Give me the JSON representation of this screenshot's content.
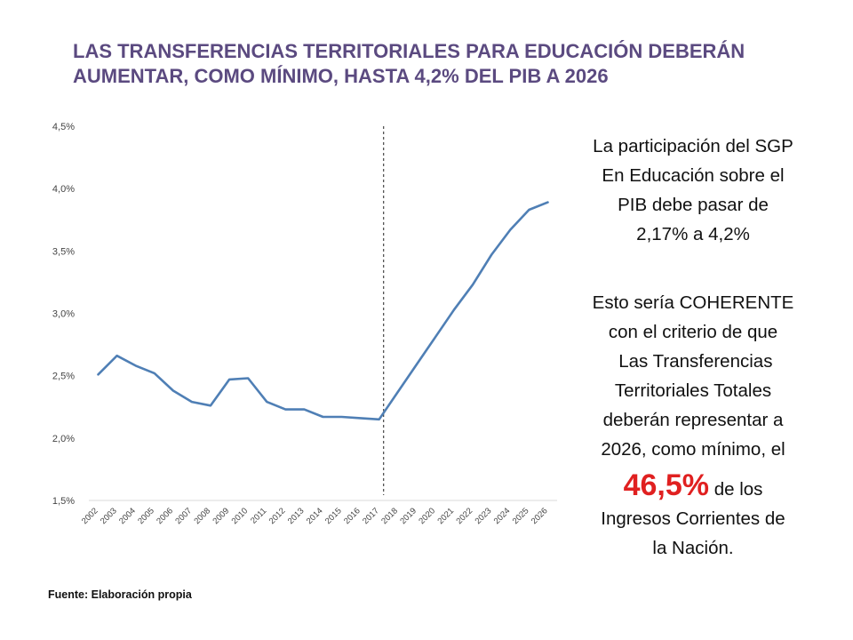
{
  "title": {
    "line1": "LAS TRANSFERENCIAS TERRITORIALES PARA EDUCACIÓN DEBERÁN",
    "line2": "AUMENTAR, COMO MÍNIMO, HASTA 4,2% DEL PIB A 2026"
  },
  "side_text": {
    "lines1": [
      "La participación del SGP",
      "En Educación sobre el",
      "PIB debe pasar de",
      "2,17% a 4,2%"
    ],
    "lines2a": [
      "Esto sería COHERENTE",
      "con el criterio de que",
      " Las Transferencias",
      "Territoriales Totales",
      "deberán representar a",
      "2026, como mínimo, el"
    ],
    "highlight": "46,5%",
    "after_highlight": " de los",
    "lines2b": [
      "Ingresos Corrientes de",
      "la Nación."
    ]
  },
  "source": "Fuente: Elaboración propia",
  "chart_data": {
    "type": "line",
    "title": "",
    "xlabel": "",
    "ylabel": "",
    "x": [
      "2002",
      "2003",
      "2004",
      "2005",
      "2006",
      "2007",
      "2008",
      "2009",
      "2010",
      "2011",
      "2012",
      "2013",
      "2014",
      "2015",
      "2016",
      "2017",
      "2018",
      "2019",
      "2020",
      "2021",
      "2022",
      "2023",
      "2024",
      "2025",
      "2026"
    ],
    "series": [
      {
        "values": [
          2.51,
          2.66,
          2.58,
          2.52,
          2.38,
          2.29,
          2.26,
          2.47,
          2.48,
          2.29,
          2.23,
          2.23,
          2.17,
          2.17,
          2.16,
          2.15,
          2.37,
          2.59,
          2.81,
          3.03,
          3.23,
          3.47,
          3.67,
          3.83,
          3.89
        ]
      }
    ],
    "ylim": [
      1.5,
      4.5
    ],
    "yticks": [
      "1,5%",
      "2,0%",
      "2,5%",
      "3,0%",
      "3,5%",
      "4,0%",
      "4,5%"
    ],
    "yticks_values": [
      1.5,
      2.0,
      2.5,
      3.0,
      3.5,
      4.0,
      4.5
    ],
    "vertical_marker_x": "2017",
    "line_color": "#4f7fb5",
    "grid": false
  }
}
